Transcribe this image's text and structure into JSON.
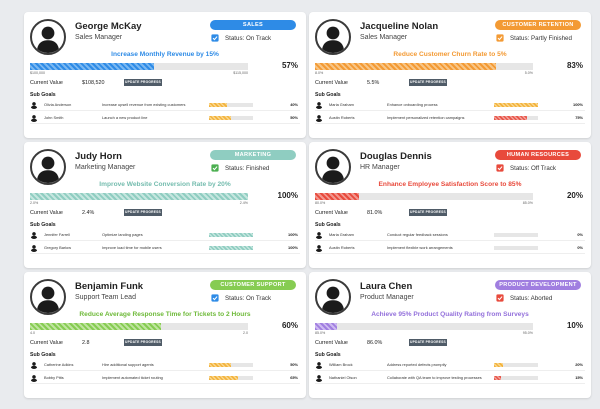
{
  "colors": {
    "sales": "#2e8be6",
    "customer_retention": "#f39a34",
    "marketing": "#8fcdc1",
    "human_resources": "#e84a3c",
    "customer_support": "#86cc52",
    "product_development": "#a07ee0"
  },
  "cards": [
    {
      "name": "George McKay",
      "role": "Sales Manager",
      "department": "SALES",
      "status": "Status: On Track",
      "goal": "Increase Monthly Revenue by 15%",
      "progress_pct": "57%",
      "progress": 0.57,
      "range_start": "$100,000",
      "range_end": "$115,000",
      "current_value_label": "Current Value",
      "current_value": "$108,520",
      "update_label": "UPDATE PROGRESS",
      "sub_goals_label": "Sub Goals",
      "sub_goals": [
        {
          "person": "Olivia Anderson",
          "task": "Increase upsell revenue from existing customers",
          "pct": "40%",
          "progress": 0.4
        },
        {
          "person": "John Smith",
          "task": "Launch a new product line",
          "pct": "50%",
          "progress": 0.5
        }
      ]
    },
    {
      "name": "Jacqueline Nolan",
      "role": "Sales Manager",
      "department": "CUSTOMER RETENTION",
      "status": "Status: Partly Finished",
      "goal": "Reduce Customer Churn Rate to 5%",
      "progress_pct": "83%",
      "progress": 0.83,
      "range_start": "8.0%",
      "range_end": "5.0%",
      "current_value_label": "Current Value",
      "current_value": "5.5%",
      "update_label": "UPDATE PROGRESS",
      "sub_goals_label": "Sub Goals",
      "sub_goals": [
        {
          "person": "Maria Graham",
          "task": "Enhance onboarding process",
          "pct": "100%",
          "progress": 1.0
        },
        {
          "person": "Austin Roberts",
          "task": "Implement personalized retention campaigns",
          "pct": "75%",
          "progress": 0.75
        }
      ]
    },
    {
      "name": "Judy Horn",
      "role": "Marketing Manager",
      "department": "MARKETING",
      "status": "Status: Finished",
      "goal": "Improve Website Conversion Rate by 20%",
      "progress_pct": "100%",
      "progress": 1.0,
      "range_start": "2.0%",
      "range_end": "2.4%",
      "current_value_label": "Current Value",
      "current_value": "2.4%",
      "update_label": "UPDATE PROGRESS",
      "sub_goals_label": "Sub Goals",
      "sub_goals": [
        {
          "person": "Jennifer Farrell",
          "task": "Optimize landing pages",
          "pct": "100%",
          "progress": 1.0
        },
        {
          "person": "Gregory Barlow",
          "task": "Improve load time for mobile users",
          "pct": "100%",
          "progress": 1.0
        }
      ]
    },
    {
      "name": "Douglas Dennis",
      "role": "HR Manager",
      "department": "HUMAN RESOURCES",
      "status": "Status: Off Track",
      "goal": "Enhance Employee Satisfaction Score to 85%",
      "progress_pct": "20%",
      "progress": 0.2,
      "range_start": "80.0%",
      "range_end": "85.0%",
      "current_value_label": "Current Value",
      "current_value": "81.0%",
      "update_label": "UPDATE PROGRESS",
      "sub_goals_label": "Sub Goals",
      "sub_goals": [
        {
          "person": "Maria Graham",
          "task": "Conduct regular feedback sessions",
          "pct": "0%",
          "progress": 0.0
        },
        {
          "person": "Austin Roberts",
          "task": "Implement flexible work arrangements",
          "pct": "0%",
          "progress": 0.0
        }
      ]
    },
    {
      "name": "Benjamin Funk",
      "role": "Support Team Lead",
      "department": "CUSTOMER SUPPORT",
      "status": "Status: On Track",
      "goal": "Reduce Average Response Time for Tickets to 2 Hours",
      "progress_pct": "60%",
      "progress": 0.6,
      "range_start": "4.0",
      "range_end": "2.0",
      "current_value_label": "Current Value",
      "current_value": "2.8",
      "update_label": "UPDATE PROGRESS",
      "sub_goals_label": "Sub Goals",
      "sub_goals": [
        {
          "person": "Catherine Adkins",
          "task": "Hire additional support agents",
          "pct": "50%",
          "progress": 0.5
        },
        {
          "person": "Bobby Pitts",
          "task": "Implement automated ticket routing",
          "pct": "65%",
          "progress": 0.65
        }
      ]
    },
    {
      "name": "Laura Chen",
      "role": "Product Manager",
      "department": "PRODUCT DEVELOPMENT",
      "status": "Status: Aborted",
      "goal": "Achieve 95% Product Quality Rating from Surveys",
      "progress_pct": "10%",
      "progress": 0.1,
      "range_start": "85.0%",
      "range_end": "95.0%",
      "current_value_label": "Current Value",
      "current_value": "86.0%",
      "update_label": "UPDATE PROGRESS",
      "sub_goals_label": "Sub Goals",
      "sub_goals": [
        {
          "person": "William Brock",
          "task": "Address reported defects promptly",
          "pct": "20%",
          "progress": 0.2
        },
        {
          "person": "Nathaniel Olson",
          "task": "Collaborate with QA team to improve testing processes",
          "pct": "15%",
          "progress": 0.15
        }
      ]
    }
  ]
}
